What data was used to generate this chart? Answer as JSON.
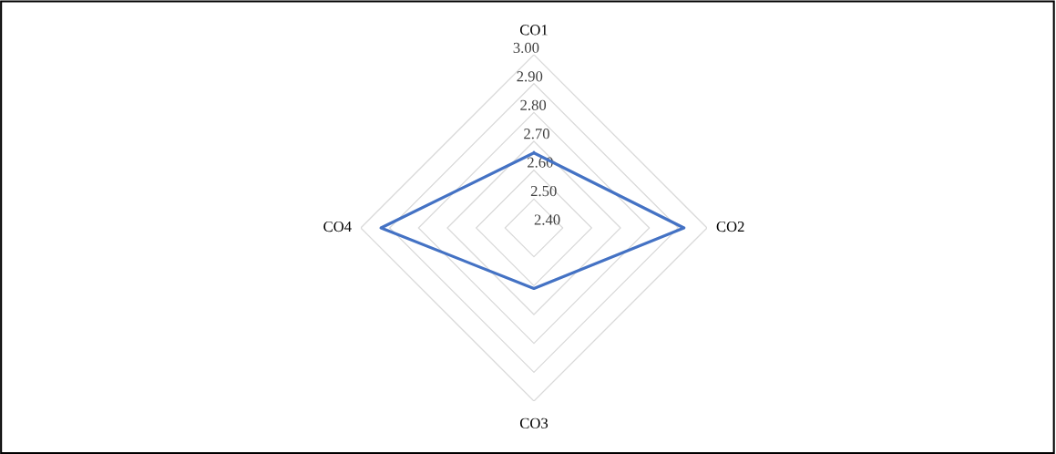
{
  "chart_data": {
    "type": "radar",
    "categories": [
      "CO1",
      "CO2",
      "CO3",
      "CO4"
    ],
    "series": [
      {
        "color": "#4472c4",
        "values": [
          2.66,
          2.92,
          2.61,
          2.93
        ]
      }
    ],
    "ylim": [
      2.4,
      3.0
    ],
    "yticks": [
      {
        "value": 2.4,
        "label": "2.40"
      },
      {
        "value": 2.5,
        "label": "2.50"
      },
      {
        "value": 2.6,
        "label": "2.60"
      },
      {
        "value": 2.7,
        "label": "2.70"
      },
      {
        "value": 2.8,
        "label": "2.80"
      },
      {
        "value": 2.9,
        "label": "2.90"
      },
      {
        "value": 3.0,
        "label": "3.00"
      }
    ],
    "grid": true,
    "marker": "none",
    "line_style": "solid"
  }
}
